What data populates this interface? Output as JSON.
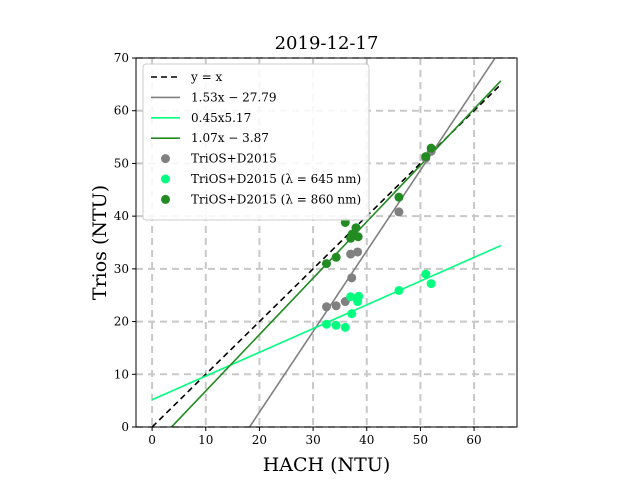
{
  "chart_data": {
    "type": "scatter",
    "title": "2019-12-17",
    "xlabel": "HACH (NTU)",
    "ylabel": "Trios (NTU)",
    "xlim": [
      -3,
      68
    ],
    "ylim": [
      0,
      70
    ],
    "xticks": [
      0,
      10,
      20,
      30,
      40,
      50,
      60
    ],
    "yticks": [
      0,
      10,
      20,
      30,
      40,
      50,
      60,
      70
    ],
    "grid": true,
    "grid_style": "dashed",
    "legend_position": "top-left",
    "lines": [
      {
        "name": "y = x",
        "legend_label": "y = x",
        "slope": 1.0,
        "intercept": 0.0,
        "x_range": [
          0,
          65
        ],
        "color": "#000000",
        "dash": true
      },
      {
        "name": "1.53x − 27.79",
        "legend_label": "1.53x − 27.79",
        "slope": 1.53,
        "intercept": -27.79,
        "x_range": [
          18.2,
          64.5
        ],
        "color": "#808080",
        "dash": false
      },
      {
        "name": "0.45x5.17",
        "legend_label": "0.45x5.17",
        "slope": 0.45,
        "intercept": 5.17,
        "x_range": [
          0,
          65
        ],
        "color": "#00ff7f",
        "dash": false
      },
      {
        "name": "1.07x − 3.87",
        "legend_label": "1.07x − 3.87",
        "slope": 1.07,
        "intercept": -3.87,
        "x_range": [
          3.6,
          65
        ],
        "color": "#228b22",
        "dash": false
      }
    ],
    "series": [
      {
        "name": "TriOS+D2015",
        "legend_label": "TriOS+D2015",
        "color": "#808080",
        "points": [
          [
            32.5,
            22.8
          ],
          [
            34.3,
            23.0
          ],
          [
            36.0,
            23.8
          ],
          [
            37.2,
            28.3
          ],
          [
            37.0,
            32.8
          ],
          [
            38.3,
            33.2
          ],
          [
            46.0,
            40.8
          ],
          [
            51.0,
            51.0
          ],
          [
            52.0,
            52.3
          ]
        ]
      },
      {
        "name": "TriOS+D2015 (λ = 645 nm)",
        "legend_label": "TriOS+D2015 (λ = 645 nm)",
        "color": "#00ff7f",
        "points": [
          [
            32.5,
            19.5
          ],
          [
            34.3,
            19.3
          ],
          [
            36.0,
            18.9
          ],
          [
            37.2,
            21.5
          ],
          [
            37.0,
            24.7
          ],
          [
            38.3,
            23.8
          ],
          [
            38.5,
            24.8
          ],
          [
            46.0,
            25.9
          ],
          [
            51.0,
            29.0
          ],
          [
            52.0,
            27.2
          ]
        ]
      },
      {
        "name": "TriOS+D2015 (λ = 860 nm)",
        "legend_label": "TriOS+D2015 (λ = 860 nm)",
        "color": "#228b22",
        "points": [
          [
            32.5,
            31.0
          ],
          [
            34.3,
            32.2
          ],
          [
            36.0,
            38.8
          ],
          [
            37.0,
            35.8
          ],
          [
            37.3,
            36.6
          ],
          [
            38.0,
            37.8
          ],
          [
            38.4,
            36.1
          ],
          [
            46.0,
            43.6
          ],
          [
            51.0,
            51.3
          ],
          [
            52.0,
            52.9
          ]
        ]
      }
    ]
  }
}
